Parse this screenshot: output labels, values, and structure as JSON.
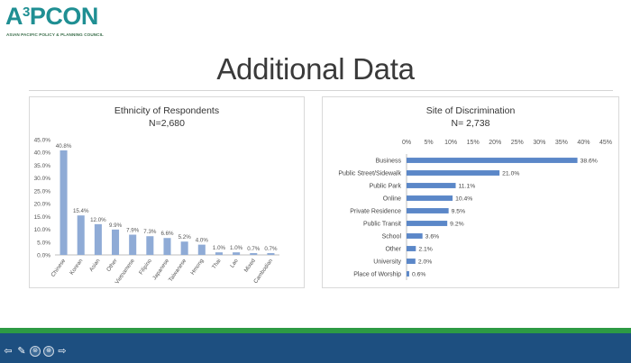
{
  "logo": {
    "word": "A",
    "sup": "3",
    "word_rest": "PCON",
    "subtitle": "ASIAN PACIFIC POLICY & PLANNING COUNCIL"
  },
  "slide": {
    "title": "Additional Data"
  },
  "colors": {
    "bar": "#8fabd6",
    "bar_right": "#5b87c8",
    "teal": "#1f8f93",
    "green_accent": "#2d9a44",
    "navy": "#1d4f80"
  },
  "nav": {
    "prev_icon": "arrow-left-icon",
    "pen_icon": "pen-icon",
    "menu_icon": "circle-menu-icon",
    "zoom_icon": "circle-zoom-icon",
    "next_icon": "arrow-right-icon",
    "prev_glyph": "⇦",
    "pen_glyph": "✎",
    "menu_glyph": "⊜",
    "zoom_glyph": "⊛",
    "next_glyph": "⇨"
  },
  "chart_data": [
    {
      "type": "bar",
      "orientation": "vertical",
      "title": "Ethnicity of Respondents",
      "subtitle": "N=2,680",
      "categories": [
        "Chinese",
        "Korean",
        "Asian",
        "Other",
        "Vietnamese",
        "Filipino",
        "Japanese",
        "Taiwanese",
        "Hmong",
        "Thai",
        "Lao",
        "Mixed",
        "Cambodian"
      ],
      "values": [
        40.8,
        15.4,
        12.0,
        9.9,
        7.9,
        7.3,
        6.6,
        5.2,
        4.0,
        1.0,
        1.0,
        0.7,
        0.7
      ],
      "data_labels": [
        "40.8%",
        "15.4%",
        "12.0%",
        "9.9%",
        "7.9%",
        "7.3%",
        "6.6%",
        "5.2%",
        "4.0%",
        "1.0%",
        "1.0%",
        "0.7%",
        "0.7%"
      ],
      "yticks": [
        "0.0%",
        "5.0%",
        "10.0%",
        "15.0%",
        "20.0%",
        "25.0%",
        "30.0%",
        "35.0%",
        "40.0%",
        "45.0%"
      ],
      "ylim": [
        0,
        45
      ],
      "grid": false,
      "legend": "none"
    },
    {
      "type": "bar",
      "orientation": "horizontal",
      "title": "Site of Discrimination",
      "subtitle": "N= 2,738",
      "categories": [
        "Business",
        "Public Street/Sidewalk",
        "Public Park",
        "Online",
        "Private Residence",
        "Public Transit",
        "School",
        "Other",
        "University",
        "Place of Worship"
      ],
      "values": [
        38.6,
        21.0,
        11.1,
        10.4,
        9.5,
        9.2,
        3.6,
        2.1,
        2.0,
        0.6
      ],
      "data_labels": [
        "38.6%",
        "21.0%",
        "11.1%",
        "10.4%",
        "9.5%",
        "9.2%",
        "3.6%",
        "2.1%",
        "2.0%",
        "0.6%"
      ],
      "xticks": [
        "0%",
        "5%",
        "10%",
        "15%",
        "20%",
        "25%",
        "30%",
        "35%",
        "40%",
        "45%"
      ],
      "xlim": [
        0,
        45
      ],
      "grid": false,
      "legend": "none"
    }
  ]
}
